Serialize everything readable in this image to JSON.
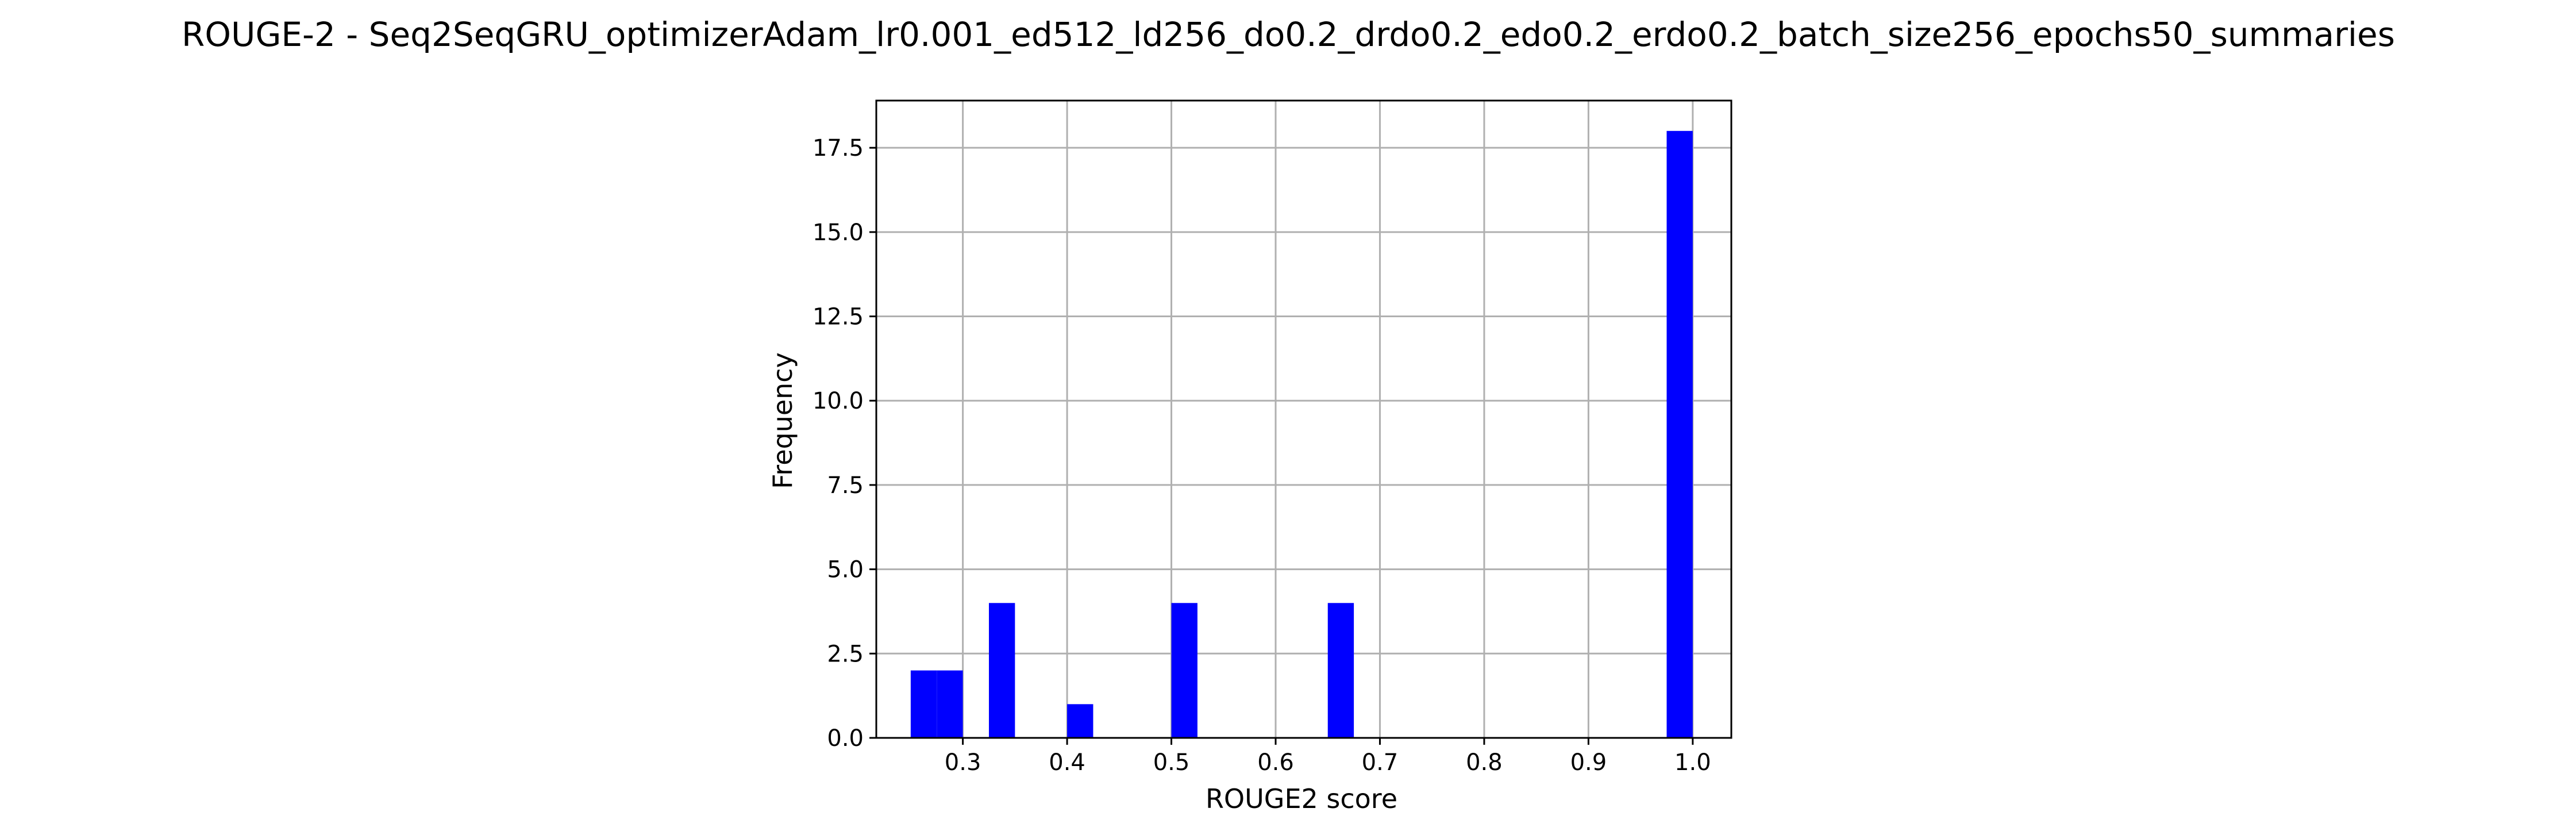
{
  "colors": {
    "bar": "#0000ff",
    "grid": "#b0b0b0",
    "axis": "#000000",
    "background": "#ffffff"
  },
  "chart_data": {
    "type": "bar",
    "title": "ROUGE-2 - Seq2SeqGRU_optimizerAdam_lr0.001_ed512_ld256_do0.2_drdo0.2_edo0.2_erdo0.2_batch_size256_epochs50_summaries",
    "xlabel": "ROUGE2 score",
    "ylabel": "Frequency",
    "xlim": [
      0.217,
      1.037
    ],
    "ylim": [
      0,
      18.9
    ],
    "grid": true,
    "legend": "none",
    "x_ticks": [
      0.3,
      0.4,
      0.5,
      0.6,
      0.7,
      0.8,
      0.9,
      1.0
    ],
    "x_tick_labels": [
      "0.3",
      "0.4",
      "0.5",
      "0.6",
      "0.7",
      "0.8",
      "0.9",
      "1.0"
    ],
    "y_ticks": [
      0,
      2.5,
      5,
      7.5,
      10,
      12.5,
      15,
      17.5
    ],
    "y_tick_labels": [
      "0.0",
      "2.5",
      "5.0",
      "7.5",
      "10.0",
      "12.5",
      "15.0",
      "17.5"
    ],
    "bins": [
      {
        "x0": 0.25,
        "x1": 0.275,
        "count": 2
      },
      {
        "x0": 0.275,
        "x1": 0.3,
        "count": 2
      },
      {
        "x0": 0.325,
        "x1": 0.35,
        "count": 4
      },
      {
        "x0": 0.4,
        "x1": 0.425,
        "count": 1
      },
      {
        "x0": 0.5,
        "x1": 0.525,
        "count": 4
      },
      {
        "x0": 0.65,
        "x1": 0.675,
        "count": 4
      },
      {
        "x0": 0.975,
        "x1": 1.0,
        "count": 18
      }
    ]
  }
}
